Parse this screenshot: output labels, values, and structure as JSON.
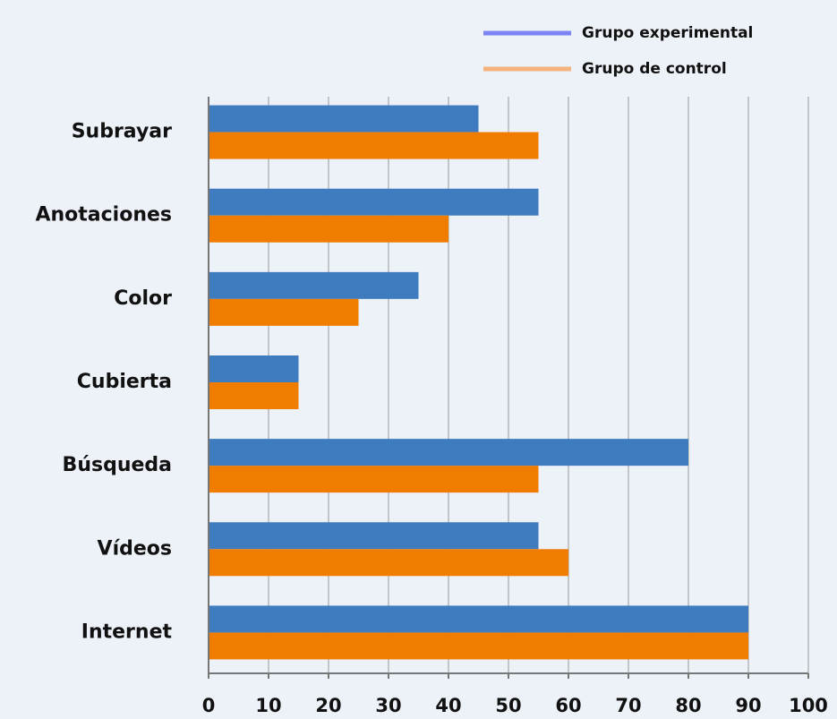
{
  "chart_data": {
    "type": "hbar",
    "categories": [
      "Subrayar",
      "Anotaciones",
      "Color",
      "Cubierta",
      "Búsqueda",
      "Vídeos",
      "Internet"
    ],
    "series": [
      {
        "name": "Grupo experimental",
        "color": "#3f7bbf",
        "legend_color": "#7b84f2",
        "values": [
          45,
          55,
          35,
          15,
          80,
          55,
          90
        ]
      },
      {
        "name": "Grupo de control",
        "color": "#f07c00",
        "legend_color": "#f4b27c",
        "values": [
          55,
          40,
          25,
          15,
          55,
          60,
          90
        ]
      }
    ],
    "xlim": [
      0,
      100
    ],
    "xticks": [
      0,
      10,
      20,
      30,
      40,
      50,
      60,
      70,
      80,
      90,
      100
    ],
    "grid": true
  }
}
